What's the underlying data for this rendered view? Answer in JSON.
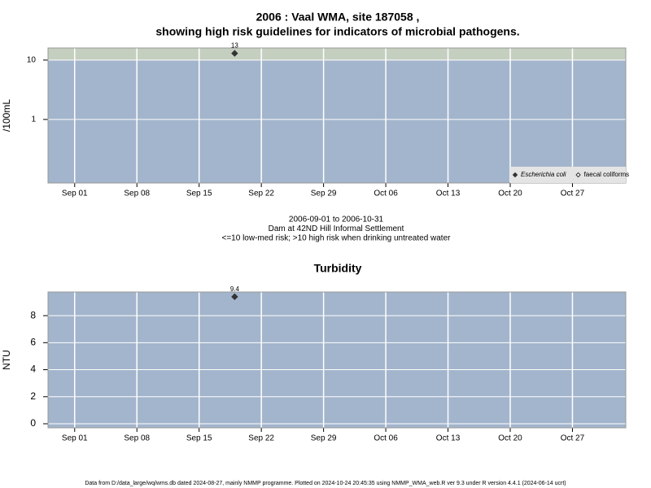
{
  "chart_data": [
    {
      "type": "scatter",
      "title": [
        "2006 : Vaal WMA, site 187058 ,",
        "showing high risk guidelines for indicators of microbial pathogens."
      ],
      "y_label": "/100mL",
      "log_y": true,
      "grid": true,
      "guideline": 10,
      "guideline_color": "#c5cfc0",
      "background": "#a3b5cc",
      "x": [
        "2006-09-19"
      ],
      "series": [
        {
          "name": "Escherichia coli",
          "color": "#333333",
          "filled": true,
          "values": [
            13
          ],
          "value_labels": [
            "13"
          ]
        },
        {
          "name": "faecal coliforms",
          "color": "#333333",
          "filled": false,
          "values": [
            null
          ]
        }
      ],
      "xlim": [
        "2006-08-29",
        "2006-11-02"
      ],
      "xticks": [
        {
          "value": "2006-09-01",
          "label": "Sep 01"
        },
        {
          "value": "2006-09-08",
          "label": "Sep 08"
        },
        {
          "value": "2006-09-15",
          "label": "Sep 15"
        },
        {
          "value": "2006-09-22",
          "label": "Sep 22"
        },
        {
          "value": "2006-09-29",
          "label": "Sep 29"
        },
        {
          "value": "2006-10-06",
          "label": "Oct 06"
        },
        {
          "value": "2006-10-13",
          "label": "Oct 13"
        },
        {
          "value": "2006-10-20",
          "label": "Oct 20"
        },
        {
          "value": "2006-10-27",
          "label": "Oct 27"
        }
      ],
      "ylim": [
        0.085,
        16
      ],
      "yticks": [
        1,
        10
      ],
      "legend": "bottom right",
      "notes": [
        "2006-09-01 to 2006-10-31",
        "Dam at 42ND Hill Informal Settlement",
        "<=10 low-med risk; >10 high risk when drinking untreated water"
      ]
    },
    {
      "type": "scatter",
      "title": [
        "Turbidity"
      ],
      "y_label": "NTU",
      "log_y": false,
      "grid": true,
      "background": "#a3b5cc",
      "x": [
        "2006-09-19"
      ],
      "series": [
        {
          "name": "Turbidity",
          "color": "#333333",
          "filled": true,
          "values": [
            9.4
          ],
          "value_labels": [
            "9.4"
          ]
        }
      ],
      "xlim": [
        "2006-08-29",
        "2006-11-02"
      ],
      "xticks": [
        {
          "value": "2006-09-01",
          "label": "Sep 01"
        },
        {
          "value": "2006-09-08",
          "label": "Sep 08"
        },
        {
          "value": "2006-09-15",
          "label": "Sep 15"
        },
        {
          "value": "2006-09-22",
          "label": "Sep 22"
        },
        {
          "value": "2006-09-29",
          "label": "Sep 29"
        },
        {
          "value": "2006-10-06",
          "label": "Oct 06"
        },
        {
          "value": "2006-10-13",
          "label": "Oct 13"
        },
        {
          "value": "2006-10-20",
          "label": "Oct 20"
        },
        {
          "value": "2006-10-27",
          "label": "Oct 27"
        }
      ],
      "ylim": [
        -0.3,
        9.75
      ],
      "yticks": [
        0,
        2,
        4,
        6,
        8
      ]
    }
  ],
  "footer": "Data from D:/data_large/wq/wms.db dated 2024-08-27, mainly NMMP programme. Plotted on 2024-10-24 20:45:35 using NMMP_WMA_web.R ver 9.3 under R version 4.4.1 (2024-06-14 ucrt)"
}
